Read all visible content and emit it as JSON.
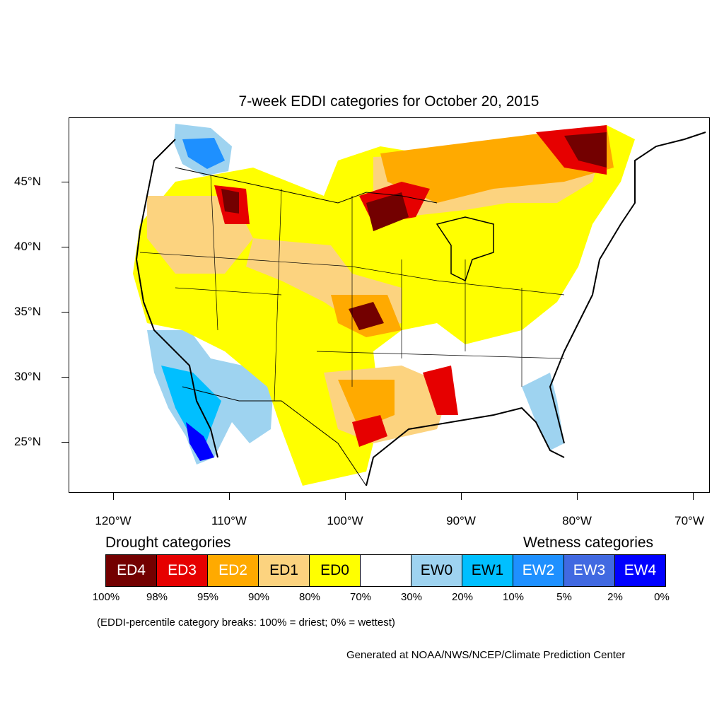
{
  "title": "7-week EDDI categories for October 20, 2015",
  "map": {
    "lat_labels": [
      "45°N",
      "40°N",
      "35°N",
      "30°N",
      "25°N"
    ],
    "lon_labels": [
      "120°W",
      "110°W",
      "100°W",
      "90°W",
      "80°W",
      "70°W"
    ],
    "background_color": "#ffffff",
    "border_color": "#000000"
  },
  "legend": {
    "drought_heading": "Drought categories",
    "wetness_heading": "Wetness categories",
    "categories": [
      {
        "label": "ED4",
        "color": "#730000",
        "text_color": "#ffffff"
      },
      {
        "label": "ED3",
        "color": "#e60000",
        "text_color": "#ffffff"
      },
      {
        "label": "ED2",
        "color": "#ffaa00",
        "text_color": "#ffffff"
      },
      {
        "label": "ED1",
        "color": "#fcd37f",
        "text_color": "#000000"
      },
      {
        "label": "ED0",
        "color": "#ffff00",
        "text_color": "#000000"
      },
      {
        "label": "",
        "color": "#ffffff",
        "text_color": "#000000"
      },
      {
        "label": "EW0",
        "color": "#9ed3f0",
        "text_color": "#000000"
      },
      {
        "label": "EW1",
        "color": "#00bfff",
        "text_color": "#000000"
      },
      {
        "label": "EW2",
        "color": "#1e90ff",
        "text_color": "#ffffff"
      },
      {
        "label": "EW3",
        "color": "#4169e1",
        "text_color": "#ffffff"
      },
      {
        "label": "EW4",
        "color": "#0000ff",
        "text_color": "#ffffff"
      }
    ],
    "percentiles": [
      "100%",
      "98%",
      "95%",
      "90%",
      "80%",
      "70%",
      "30%",
      "20%",
      "10%",
      "5%",
      "2%",
      "0%"
    ]
  },
  "note": "(EDDI-percentile category breaks: 100% = driest; 0% = wettest)",
  "credit": "Generated at NOAA/NWS/NCEP/Climate Prediction Center"
}
